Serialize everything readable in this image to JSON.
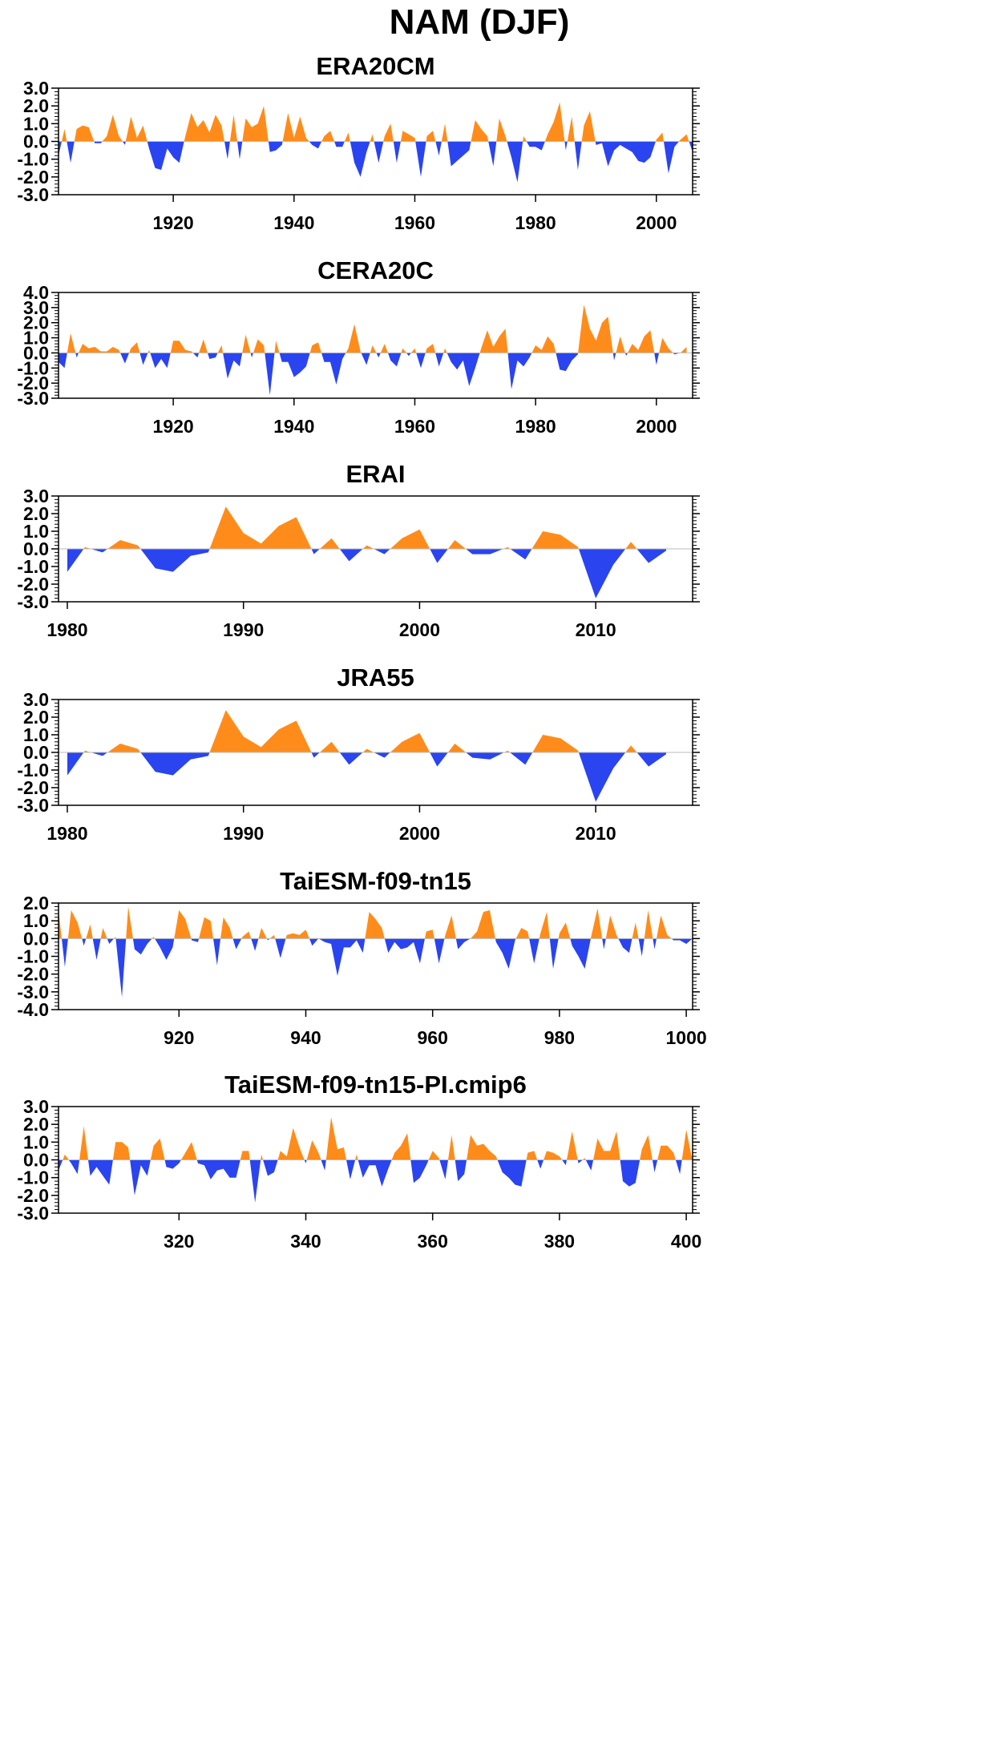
{
  "figure": {
    "title": "NAM (DJF)"
  },
  "colors": {
    "positive": "#FF8C1A",
    "negative": "#2A44F0",
    "frame": "#000000",
    "zero_line": "#BBBBBB"
  },
  "chart_data": [
    {
      "type": "area",
      "title": "ERA20CM",
      "xlim": [
        1901,
        2006
      ],
      "ylim": [
        -3,
        3
      ],
      "yticks": [
        "3.0",
        "2.0",
        "1.0",
        "0.0",
        "-1.0",
        "-2.0",
        "-3.0"
      ],
      "yticks_values": [
        3,
        2,
        1,
        0,
        -1,
        -2,
        -3
      ],
      "xticks": [
        1920,
        1940,
        1960,
        1980,
        2000
      ],
      "x_start": 1901,
      "values": [
        -0.8,
        0.7,
        -1.2,
        0.7,
        0.9,
        0.8,
        -0.1,
        -0.1,
        0.3,
        1.5,
        0.3,
        -0.2,
        1.4,
        0.2,
        0.9,
        -0.4,
        -1.5,
        -1.6,
        -0.4,
        -0.9,
        -1.2,
        0.3,
        1.6,
        0.8,
        1.2,
        0.5,
        1.5,
        0.9,
        -1.0,
        1.5,
        -1.0,
        1.3,
        0.8,
        1.0,
        2.0,
        -0.6,
        -0.5,
        -0.2,
        1.6,
        0.2,
        1.4,
        0.2,
        -0.2,
        -0.4,
        0.3,
        0.6,
        -0.3,
        -0.3,
        0.5,
        -1.2,
        -2.0,
        -0.6,
        0.4,
        -1.2,
        0.3,
        1.0,
        -1.2,
        0.6,
        0.4,
        0.2,
        -2.0,
        0.3,
        0.6,
        -0.8,
        1.0,
        -1.4,
        -1.1,
        -0.8,
        -0.5,
        1.2,
        0.7,
        0.3,
        -1.4,
        1.3,
        0.3,
        -0.9,
        -2.3,
        0.3,
        -0.3,
        -0.3,
        -0.5,
        0.4,
        1.1,
        2.2,
        -0.5,
        1.4,
        -1.6,
        0.9,
        1.7,
        -0.2,
        -0.1,
        -1.4,
        -0.5,
        -0.2,
        -0.4,
        -0.6,
        -1.1,
        -1.2,
        -0.9,
        0.1,
        0.5,
        -1.8,
        -0.3,
        0.1,
        0.4,
        -0.6
      ]
    },
    {
      "type": "area",
      "title": "CERA20C",
      "xlim": [
        1901,
        2006
      ],
      "ylim": [
        -3,
        4
      ],
      "yticks": [
        "4.0",
        "3.0",
        "2.0",
        "1.0",
        "0.0",
        "-1.0",
        "-2.0",
        "-3.0"
      ],
      "yticks_values": [
        4,
        3,
        2,
        1,
        0,
        -1,
        -2,
        -3
      ],
      "xticks": [
        1920,
        1940,
        1960,
        1980,
        2000
      ],
      "x_start": 1901,
      "values": [
        -0.6,
        -1.0,
        1.3,
        -0.3,
        0.6,
        0.3,
        0.4,
        0.1,
        0.1,
        0.4,
        0.2,
        -0.7,
        0.3,
        0.7,
        -0.8,
        0.2,
        -1.0,
        -0.4,
        -1.0,
        0.8,
        0.8,
        0.2,
        0.1,
        -0.3,
        0.9,
        -0.4,
        -0.3,
        0.5,
        -1.7,
        -0.5,
        -0.9,
        1.2,
        -0.3,
        0.9,
        0.5,
        -2.8,
        0.8,
        -0.6,
        -0.6,
        -1.6,
        -1.3,
        -0.9,
        0.5,
        0.7,
        -0.6,
        -0.6,
        -2.1,
        -0.4,
        0.3,
        1.9,
        0.1,
        -0.8,
        0.5,
        -0.3,
        0.6,
        -0.5,
        -0.9,
        0.3,
        -0.2,
        0.3,
        -1.0,
        0.3,
        0.6,
        -0.9,
        0.3,
        -0.6,
        -1.1,
        -0.5,
        -2.2,
        -1.0,
        0.3,
        1.5,
        0.4,
        1.1,
        1.6,
        -2.4,
        -0.5,
        -0.9,
        -0.3,
        0.5,
        0.2,
        1.1,
        0.6,
        -1.1,
        -1.2,
        -0.5,
        -0.1,
        3.2,
        1.6,
        0.8,
        2.0,
        2.4,
        -0.5,
        1.1,
        -0.2,
        0.6,
        0.2,
        1.1,
        1.5,
        -0.8,
        1.0,
        0.3,
        -0.1,
        0.0,
        0.4
      ]
    },
    {
      "type": "area",
      "title": "ERAI",
      "xlim": [
        1979.5,
        2015.5
      ],
      "ylim": [
        -3,
        3
      ],
      "yticks": [
        "3.0",
        "2.0",
        "1.0",
        "0.0",
        "-1.0",
        "-2.0",
        "-3.0"
      ],
      "yticks_values": [
        3,
        2,
        1,
        0,
        -1,
        -2,
        -3
      ],
      "xticks": [
        1980,
        1990,
        2000,
        2010
      ],
      "x_start": 1980,
      "values": [
        -1.3,
        0.1,
        -0.2,
        0.5,
        0.2,
        -1.1,
        -1.3,
        -0.4,
        -0.2,
        2.4,
        0.9,
        0.3,
        1.3,
        1.8,
        -0.3,
        0.6,
        -0.7,
        0.2,
        -0.3,
        0.6,
        1.1,
        -0.8,
        0.5,
        -0.3,
        -0.3,
        0.1,
        -0.6,
        1.0,
        0.8,
        0.1,
        -2.8,
        -0.9,
        0.4,
        -0.8,
        -0.1
      ]
    },
    {
      "type": "area",
      "title": "JRA55",
      "xlim": [
        1979.5,
        2015.5
      ],
      "ylim": [
        -3,
        3
      ],
      "yticks": [
        "3.0",
        "2.0",
        "1.0",
        "0.0",
        "-1.0",
        "-2.0",
        "-3.0"
      ],
      "yticks_values": [
        3,
        2,
        1,
        0,
        -1,
        -2,
        -3
      ],
      "xticks": [
        1980,
        1990,
        2000,
        2010
      ],
      "x_start": 1980,
      "values": [
        -1.3,
        0.1,
        -0.2,
        0.5,
        0.2,
        -1.1,
        -1.3,
        -0.4,
        -0.2,
        2.4,
        0.9,
        0.3,
        1.3,
        1.8,
        -0.3,
        0.6,
        -0.7,
        0.2,
        -0.3,
        0.6,
        1.1,
        -0.8,
        0.5,
        -0.3,
        -0.4,
        0.1,
        -0.7,
        1.0,
        0.8,
        0.1,
        -2.8,
        -0.9,
        0.4,
        -0.8,
        -0.1
      ]
    },
    {
      "type": "area",
      "title": "TaiESM-f09-tn15",
      "xlim": [
        901,
        1001
      ],
      "ylim": [
        -4,
        2
      ],
      "yticks": [
        "2.0",
        "1.0",
        "0.0",
        "-1.0",
        "-2.0",
        "-3.0",
        "-4.0"
      ],
      "yticks_values": [
        2,
        1,
        0,
        -1,
        -2,
        -3,
        -4
      ],
      "xticks": [
        920,
        940,
        960,
        980,
        1000
      ],
      "x_start": 901,
      "values": [
        1.6,
        -1.6,
        1.6,
        0.9,
        -0.4,
        0.8,
        -1.2,
        0.6,
        -0.3,
        0.1,
        -3.3,
        1.8,
        -0.6,
        -0.9,
        -0.3,
        0.1,
        -0.5,
        -1.2,
        -0.5,
        1.6,
        1.1,
        -0.1,
        -0.2,
        1.2,
        1.0,
        -1.5,
        1.2,
        0.6,
        -0.6,
        0.1,
        0.4,
        -0.7,
        0.6,
        -0.1,
        0.2,
        -1.1,
        0.2,
        0.3,
        0.2,
        0.5,
        -0.4,
        0.0,
        -0.2,
        -0.3,
        -2.1,
        -0.5,
        -0.5,
        -0.1,
        -0.8,
        1.5,
        1.1,
        0.6,
        -0.8,
        -0.2,
        -0.6,
        -0.5,
        -0.2,
        -1.4,
        0.4,
        0.5,
        -1.4,
        0.2,
        1.3,
        -0.6,
        -0.2,
        0.0,
        0.4,
        1.5,
        1.6,
        -0.2,
        -0.8,
        -1.7,
        -0.1,
        0.6,
        0.4,
        -1.4,
        0.3,
        1.5,
        -1.7,
        0.3,
        0.9,
        -0.4,
        -1.0,
        -1.7,
        0.1,
        1.7,
        -0.6,
        1.3,
        0.2,
        -0.5,
        -0.8,
        0.9,
        -1.0,
        1.6,
        -0.6,
        1.3,
        0.2,
        -0.1,
        -0.1,
        -0.3,
        0.0
      ]
    },
    {
      "type": "area",
      "title": "TaiESM-f09-tn15-PI.cmip6",
      "xlim": [
        301,
        401
      ],
      "ylim": [
        -3,
        3
      ],
      "yticks": [
        "3.0",
        "2.0",
        "1.0",
        "0.0",
        "-1.0",
        "-2.0",
        "-3.0"
      ],
      "yticks_values": [
        3,
        2,
        1,
        0,
        -1,
        -2,
        -3
      ],
      "xticks": [
        320,
        340,
        360,
        380,
        400
      ],
      "x_start": 301,
      "values": [
        -0.6,
        0.3,
        -0.2,
        -0.8,
        1.9,
        -0.9,
        -0.4,
        -0.9,
        -1.4,
        1.0,
        1.0,
        0.7,
        -2.0,
        -0.3,
        -0.9,
        0.8,
        1.2,
        -0.4,
        -0.5,
        -0.2,
        0.4,
        1.0,
        -0.2,
        -0.3,
        -1.1,
        -0.6,
        -0.5,
        -1.0,
        -1.0,
        0.5,
        0.5,
        -2.4,
        0.3,
        -0.9,
        -0.7,
        0.5,
        0.2,
        1.8,
        0.7,
        -0.2,
        1.1,
        0.4,
        -0.6,
        2.4,
        0.6,
        0.7,
        -1.1,
        0.3,
        -1.0,
        -0.3,
        -0.3,
        -1.5,
        -0.5,
        0.4,
        0.8,
        1.5,
        -1.3,
        -1.0,
        -0.3,
        0.5,
        0.1,
        -1.1,
        1.4,
        -1.2,
        -0.8,
        1.4,
        0.8,
        0.9,
        0.5,
        0.2,
        -0.7,
        -1.0,
        -1.4,
        -1.5,
        0.4,
        0.5,
        -0.5,
        0.5,
        0.4,
        0.2,
        -0.3,
        1.6,
        -0.2,
        0.1,
        -0.6,
        1.2,
        0.5,
        0.5,
        1.6,
        -1.2,
        -1.5,
        -1.3,
        0.6,
        1.4,
        -0.7,
        0.8,
        0.8,
        0.4,
        -0.8,
        1.7,
        -0.1
      ]
    }
  ]
}
